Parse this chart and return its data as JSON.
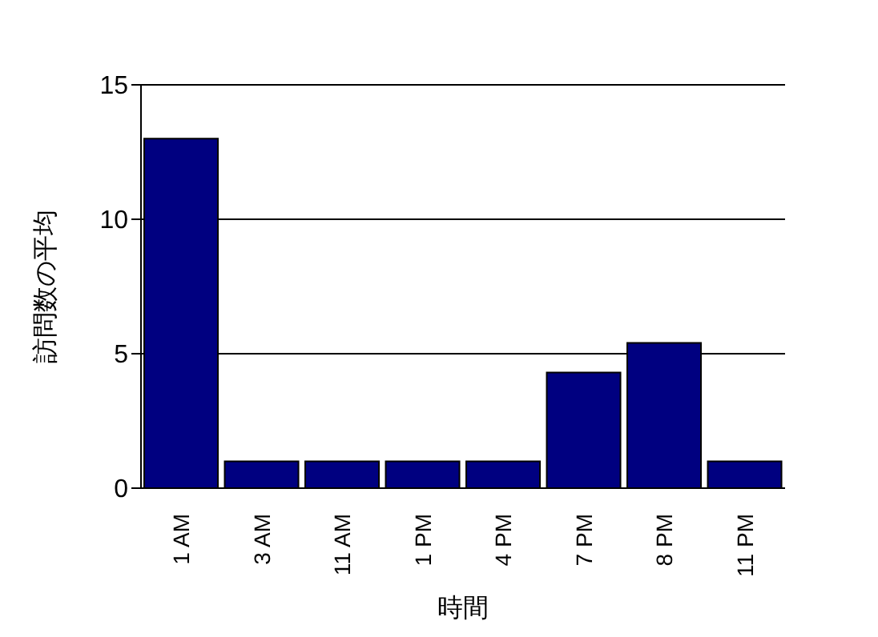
{
  "chart_data": {
    "type": "bar",
    "xlabel": "時間",
    "ylabel": "訪問数の平均",
    "categories": [
      "1 AM",
      "3 AM",
      "11 AM",
      "1 PM",
      "4 PM",
      "7 PM",
      "8 PM",
      "11 PM"
    ],
    "values": [
      13,
      1,
      1,
      1,
      1,
      4.3,
      5.4,
      1
    ],
    "color": "#000080",
    "ylim": [
      0,
      15
    ],
    "yticks": [
      0,
      5,
      10,
      15
    ],
    "grid": "y"
  }
}
